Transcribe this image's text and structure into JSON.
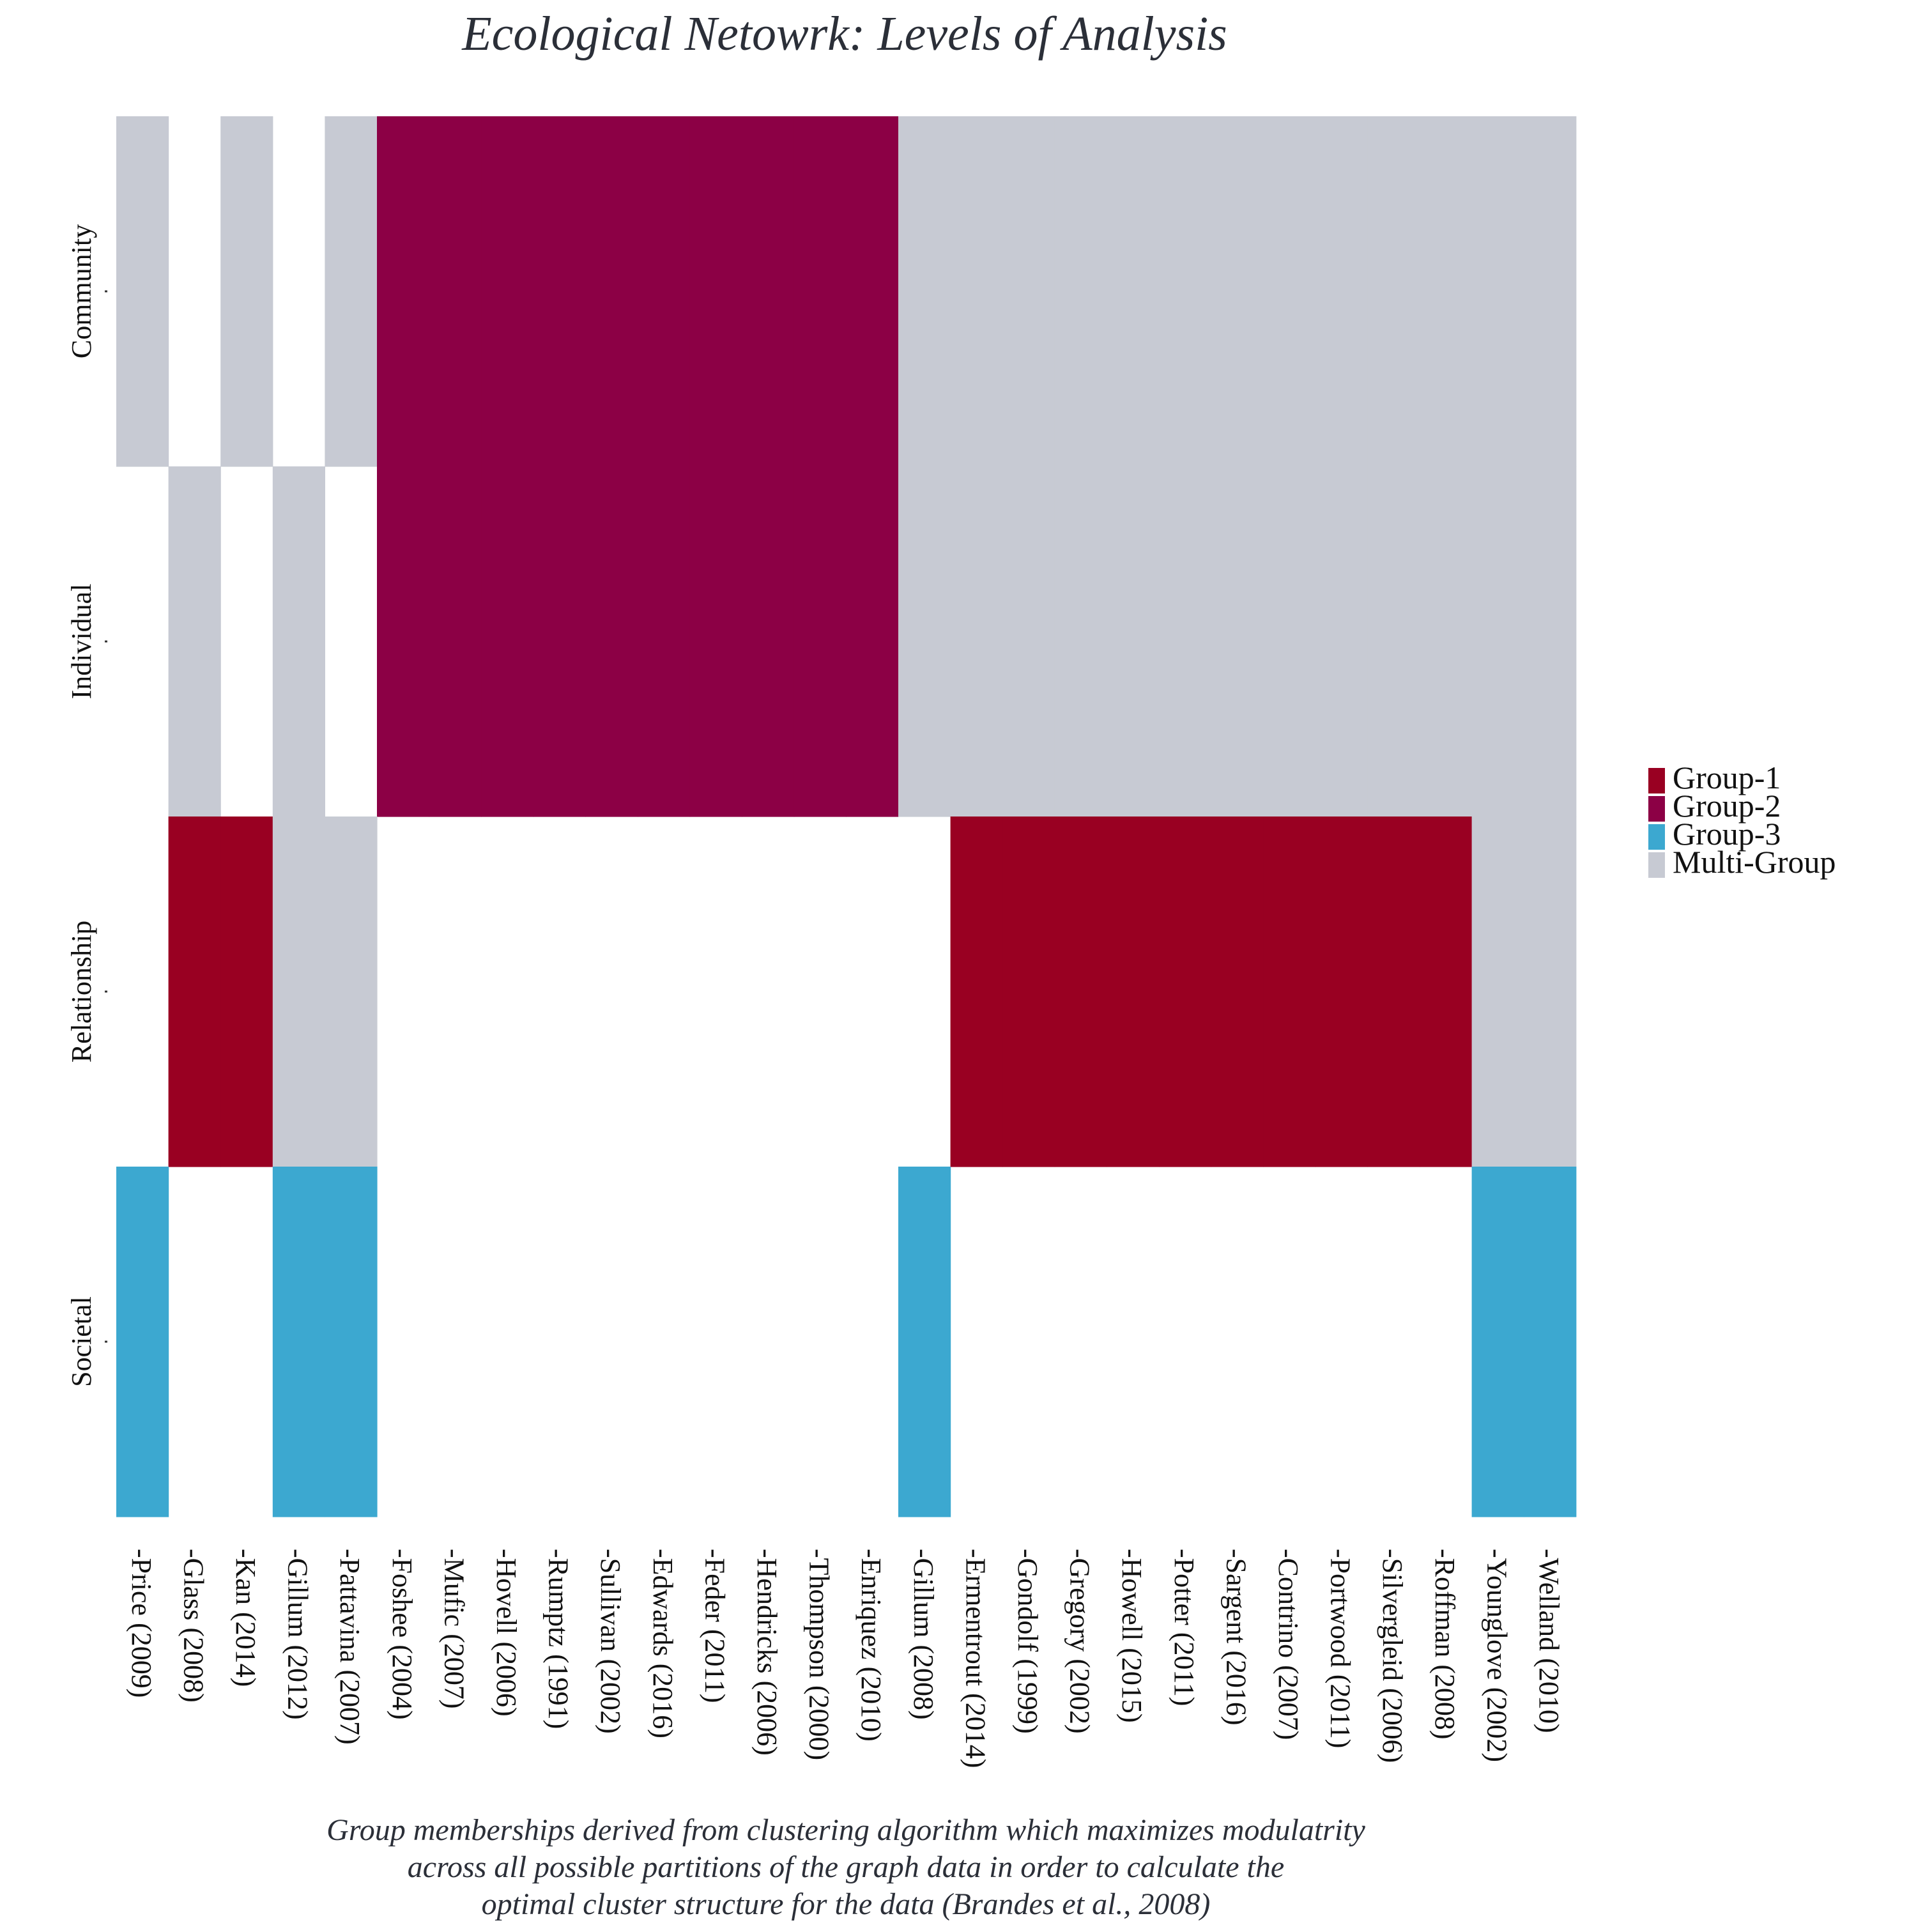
{
  "colors": {
    "background": "#ffffff",
    "empty": "#ffffff",
    "text": "#2b2f38"
  },
  "chart_data": {
    "type": "heatmap",
    "title": "Ecological Netowrk: Levels of Analysis",
    "caption": [
      "Group memberships derived from clustering algorithm which maximizes modulatrity",
      "across all possible partitions of the graph data in order to calculate the",
      "optimal cluster structure for the data (Brandes et al., 2008)"
    ],
    "x_categories": [
      "Price (2009)",
      "Glass (2008)",
      "Kan (2014)",
      "Gillum (2012)",
      "Pattavina (2007)",
      "Foshee (2004)",
      "Mufic (2007)",
      "Hovell (2006)",
      "Rumptz (1991)",
      "Sullivan (2002)",
      "Edwards (2016)",
      "Feder (2011)",
      "Hendricks (2006)",
      "Thompson (2000)",
      "Enriquez (2010)",
      "Gillum (2008)",
      "Ermentrout (2014)",
      "Gondolf (1999)",
      "Gregory (2002)",
      "Howell (2015)",
      "Potter (2011)",
      "Sargent (2016)",
      "Contrino (2007)",
      "Portwood (2011)",
      "Silvergleid (2006)",
      "Roffman (2008)",
      "Younglove (2002)",
      "Welland (2010)"
    ],
    "y_categories": [
      "Community",
      "Individual",
      "Relationship",
      "Societal"
    ],
    "legend": {
      "position": "right",
      "entries": [
        {
          "label": "Group-1",
          "color": "#990022"
        },
        {
          "label": "Group-2",
          "color": "#8c0045"
        },
        {
          "label": "Group-3",
          "color": "#3ca8d0"
        },
        {
          "label": "Multi-Group",
          "color": "#c7cad3"
        }
      ]
    },
    "cells": [
      [
        "Multi-Group",
        null,
        "Multi-Group",
        null,
        "Multi-Group",
        "Group-2",
        "Group-2",
        "Group-2",
        "Group-2",
        "Group-2",
        "Group-2",
        "Group-2",
        "Group-2",
        "Group-2",
        "Group-2",
        "Multi-Group",
        "Multi-Group",
        "Multi-Group",
        "Multi-Group",
        "Multi-Group",
        "Multi-Group",
        "Multi-Group",
        "Multi-Group",
        "Multi-Group",
        "Multi-Group",
        "Multi-Group",
        "Multi-Group",
        "Multi-Group"
      ],
      [
        null,
        "Multi-Group",
        null,
        "Multi-Group",
        null,
        "Group-2",
        "Group-2",
        "Group-2",
        "Group-2",
        "Group-2",
        "Group-2",
        "Group-2",
        "Group-2",
        "Group-2",
        "Group-2",
        "Multi-Group",
        "Multi-Group",
        "Multi-Group",
        "Multi-Group",
        "Multi-Group",
        "Multi-Group",
        "Multi-Group",
        "Multi-Group",
        "Multi-Group",
        "Multi-Group",
        "Multi-Group",
        "Multi-Group",
        "Multi-Group"
      ],
      [
        null,
        "Group-1",
        "Group-1",
        "Multi-Group",
        "Multi-Group",
        null,
        null,
        null,
        null,
        null,
        null,
        null,
        null,
        null,
        null,
        null,
        "Group-1",
        "Group-1",
        "Group-1",
        "Group-1",
        "Group-1",
        "Group-1",
        "Group-1",
        "Group-1",
        "Group-1",
        "Group-1",
        "Multi-Group",
        "Multi-Group"
      ],
      [
        "Group-3",
        null,
        null,
        "Group-3",
        "Group-3",
        null,
        null,
        null,
        null,
        null,
        null,
        null,
        null,
        null,
        null,
        "Group-3",
        null,
        null,
        null,
        null,
        null,
        null,
        null,
        null,
        null,
        null,
        "Group-3",
        "Group-3"
      ]
    ],
    "grid": false
  }
}
